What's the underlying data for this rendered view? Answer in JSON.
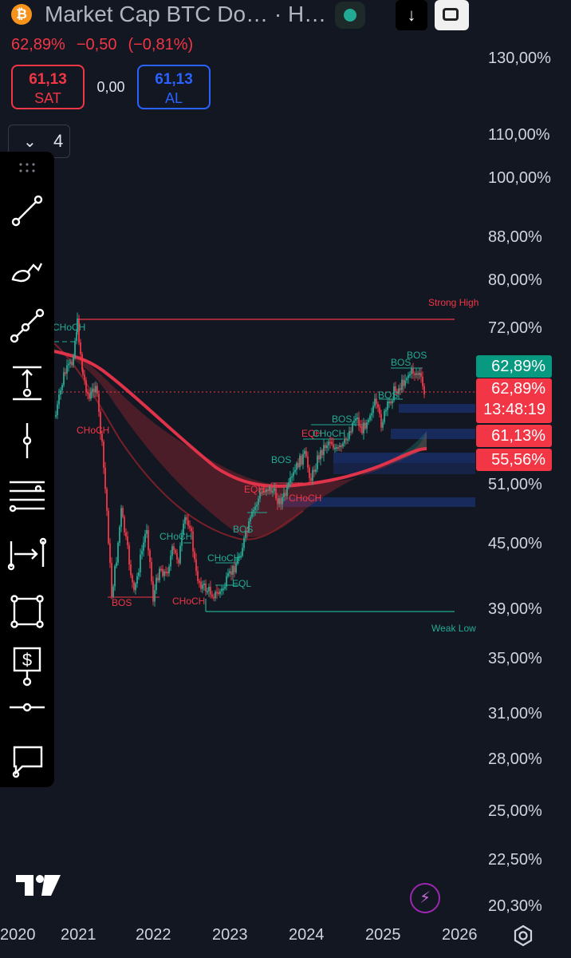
{
  "header": {
    "coin_icon": "bitcoin-icon",
    "title": "Market Cap BTC Do… · H…",
    "price_line": {
      "last": "62,89%",
      "change": "−0,50",
      "change_pct": "(−0,81%)"
    },
    "sell": {
      "value": "61,13",
      "label": "SAT"
    },
    "buy": {
      "value": "61,13",
      "label": "AL"
    },
    "spread": "0,00",
    "collapse": {
      "count": "4"
    }
  },
  "toolbar": {
    "tools": [
      "trend-line-icon",
      "brush-icon",
      "path-icon",
      "price-range-icon",
      "cross-line-icon",
      "fib-icon",
      "date-range-icon",
      "rectangle-icon",
      "dollar-icon",
      "horizontal-ray-icon",
      "callout-icon"
    ]
  },
  "price_axis": {
    "labels": [
      "130,00%",
      "110,00%",
      "100,00%",
      "88,00%",
      "80,00%",
      "72,00%",
      "51,00%",
      "45,00%",
      "39,00%",
      "35,00%",
      "31,00%",
      "28,00%",
      "25,00%",
      "22,50%",
      "20,30%"
    ],
    "tags": {
      "green": "62,89%",
      "red_price": "62,89%",
      "countdown": "13:48:19",
      "level1": "61,13%",
      "level2": "55,56%"
    }
  },
  "time_axis": {
    "labels": [
      "2020",
      "2021",
      "2022",
      "2023",
      "2024",
      "2025",
      "2026"
    ]
  },
  "chart_data": {
    "type": "candlestick",
    "symbol": "Market Cap BTC Dominance",
    "timeframe": "H",
    "x_range": [
      "2020",
      "2026"
    ],
    "y_range_pct": [
      20.3,
      130.0
    ],
    "scale": "log",
    "last_price": 62.89,
    "annotations": {
      "strong_high": "Strong High",
      "weak_low": "Weak Low",
      "labels": [
        {
          "text": "CHoCH",
          "date": "2020.9",
          "color": "#22ab94"
        },
        {
          "text": "CHoCH",
          "date": "2021.0",
          "color": "#f23645"
        },
        {
          "text": "BOS",
          "date": "2021.5",
          "color": "#f23645"
        },
        {
          "text": "CHoCH",
          "date": "2022.1",
          "color": "#22ab94"
        },
        {
          "text": "CHoCH",
          "date": "2022.5",
          "color": "#f23645"
        },
        {
          "text": "CHoCH",
          "date": "2022.7",
          "color": "#22ab94"
        },
        {
          "text": "EQL",
          "date": "2023.1",
          "color": "#22ab94"
        },
        {
          "text": "BOS",
          "date": "2023.1",
          "color": "#22ab94"
        },
        {
          "text": "EQH",
          "date": "2023.3",
          "color": "#f23645"
        },
        {
          "text": "BOS",
          "date": "2023.6",
          "color": "#22ab94"
        },
        {
          "text": "CHoCH",
          "date": "2023.8",
          "color": "#f23645"
        },
        {
          "text": "EQH",
          "date": "2024.0",
          "color": "#f23645"
        },
        {
          "text": "CHoCH",
          "date": "2024.2",
          "color": "#22ab94"
        },
        {
          "text": "BOS",
          "date": "2024.4",
          "color": "#22ab94"
        },
        {
          "text": "BOS",
          "date": "2024.9",
          "color": "#22ab94"
        },
        {
          "text": "BOS",
          "date": "2025.1",
          "color": "#22ab94"
        },
        {
          "text": "BOS",
          "date": "2025.4",
          "color": "#22ab94"
        }
      ]
    }
  }
}
